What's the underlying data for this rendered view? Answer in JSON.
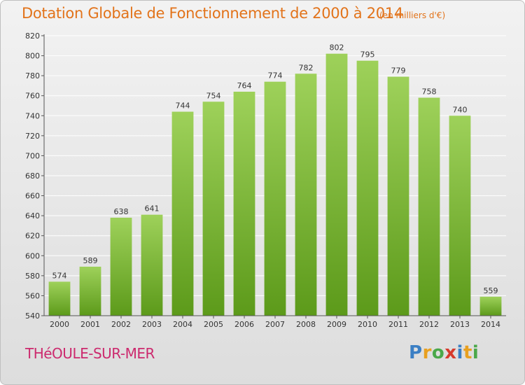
{
  "header": {
    "title": "Dotation Globale de Fonctionnement de 2000 à 2014",
    "subtitle": "(en milliers d'€)"
  },
  "footer": {
    "commune": "THéOULE-SUR-MER",
    "logo_letters": [
      {
        "char": "P",
        "color": "#3b7fc4"
      },
      {
        "char": "r",
        "color": "#e8a020"
      },
      {
        "char": "o",
        "color": "#4aa84a"
      },
      {
        "char": "x",
        "color": "#d63a2c"
      },
      {
        "char": "i",
        "color": "#3b7fc4"
      },
      {
        "char": "t",
        "color": "#e8a020"
      },
      {
        "char": "i",
        "color": "#4aa84a"
      }
    ]
  },
  "colors": {
    "title": "#e2731a",
    "commune": "#cc2a6e",
    "bar_top": "#9ed15a",
    "bar_bottom": "#5c9a1a",
    "grid": "#ffffff",
    "axis": "#555555"
  },
  "chart_data": {
    "type": "bar",
    "title": "Dotation Globale de Fonctionnement de 2000 à 2014",
    "subtitle": "(en milliers d'€)",
    "categories": [
      "2000",
      "2001",
      "2002",
      "2003",
      "2004",
      "2005",
      "2006",
      "2007",
      "2008",
      "2009",
      "2010",
      "2011",
      "2012",
      "2013",
      "2014"
    ],
    "values": [
      574,
      589,
      638,
      641,
      744,
      754,
      764,
      774,
      782,
      802,
      795,
      779,
      758,
      740,
      559
    ],
    "ylim": [
      540,
      820
    ],
    "yticks": [
      540,
      560,
      580,
      600,
      620,
      640,
      660,
      680,
      700,
      720,
      740,
      760,
      780,
      800,
      820
    ],
    "xlabel": "",
    "ylabel": "",
    "grid": true,
    "legend": "none"
  }
}
